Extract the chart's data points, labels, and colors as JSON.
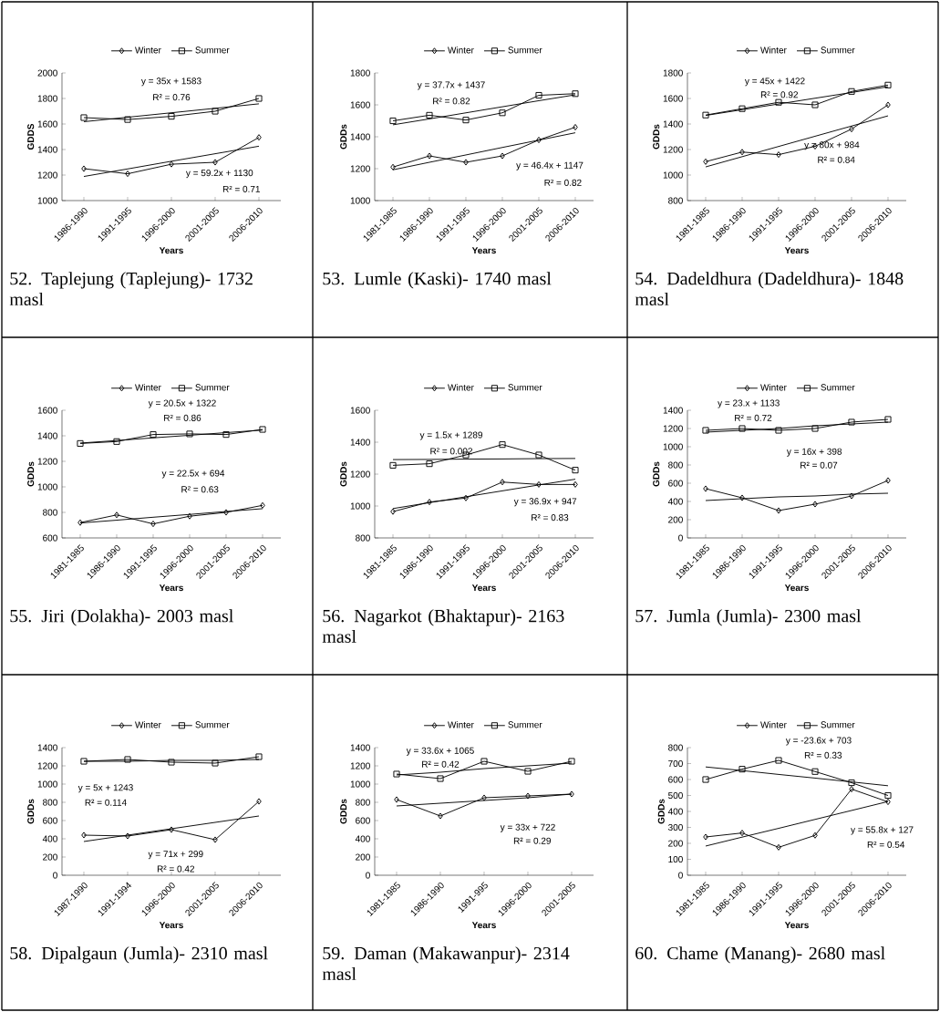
{
  "chart_data": [
    {
      "type": "line",
      "title": "52. Taplejung (Taplejung)- 1732 masl",
      "xlabel": "Years",
      "ylabel": "GDDS",
      "categories": [
        "1986-1990",
        "1991-1995",
        "1996-2000",
        "2001-2005",
        "2006-2010"
      ],
      "ylim": [
        1000,
        2000
      ],
      "yticks": [
        1000,
        1200,
        1400,
        1600,
        1800,
        2000
      ],
      "legend": "top",
      "series": [
        {
          "name": "Winter",
          "color": "#000000",
          "marker": "diamond",
          "values": [
            1250,
            1210,
            1285,
            1300,
            1495
          ]
        },
        {
          "name": "Summer",
          "color": "#000000",
          "marker": "square",
          "values": [
            1650,
            1635,
            1660,
            1700,
            1800
          ]
        },
        {
          "color": "#000000",
          "values": [
            1189,
            1248,
            1308,
            1367,
            1426
          ]
        },
        {
          "color": "#000000",
          "values": [
            1618,
            1653,
            1688,
            1723,
            1758
          ]
        }
      ],
      "annotations": [
        "y = 35x + 1583",
        "R² = 0.76",
        "y = 59.2x + 1130",
        "R² = 0.71"
      ]
    },
    {
      "type": "line",
      "title": "53. Lumle (Kaski)- 1740 masl",
      "xlabel": "Years",
      "ylabel": "GDDs",
      "categories": [
        "1981-1985",
        "1986-1990",
        "1991-1995",
        "1996-2000",
        "2001-2005",
        "2006-2010"
      ],
      "ylim": [
        1000,
        1800
      ],
      "yticks": [
        1000,
        1200,
        1400,
        1600,
        1800
      ],
      "legend": "top",
      "series": [
        {
          "name": "Winter",
          "color": "#000000",
          "marker": "diamond",
          "values": [
            1210,
            1280,
            1240,
            1280,
            1380,
            1460
          ]
        },
        {
          "name": "Summer",
          "color": "#000000",
          "marker": "square",
          "values": [
            1500,
            1535,
            1505,
            1550,
            1660,
            1670
          ]
        },
        {
          "color": "#000000",
          "values": [
            1193,
            1240,
            1286,
            1333,
            1379,
            1425
          ]
        },
        {
          "color": "#000000",
          "values": [
            1475,
            1512,
            1550,
            1588,
            1626,
            1663
          ]
        }
      ],
      "annotations": [
        "y = 37.7x + 1437",
        "R² = 0.82",
        "y = 46.4x + 1147",
        "R² = 0.82"
      ]
    },
    {
      "type": "line",
      "title": "54. Dadeldhura (Dadeldhura)- 1848 masl",
      "xlabel": "Years",
      "ylabel": "GDDs",
      "categories": [
        "1981-1985",
        "1986-1990",
        "1991-1995",
        "1996-2000",
        "2001-2005",
        "2006-2010"
      ],
      "ylim": [
        800,
        1800
      ],
      "yticks": [
        800,
        1000,
        1200,
        1400,
        1600,
        1800
      ],
      "legend": "top",
      "series": [
        {
          "name": "Winter",
          "color": "#000000",
          "marker": "diamond",
          "values": [
            1105,
            1180,
            1160,
            1225,
            1360,
            1550
          ]
        },
        {
          "name": "Summer",
          "color": "#000000",
          "marker": "square",
          "values": [
            1470,
            1520,
            1570,
            1550,
            1655,
            1705
          ]
        },
        {
          "color": "#000000",
          "values": [
            1064,
            1144,
            1224,
            1304,
            1384,
            1464
          ]
        },
        {
          "color": "#000000",
          "values": [
            1467,
            1512,
            1557,
            1602,
            1647,
            1692
          ]
        }
      ],
      "annotations": [
        "y = 45x + 1422",
        "R² = 0.92",
        "y = 80x + 984",
        "R² = 0.84"
      ]
    },
    {
      "type": "line",
      "title": "55. Jiri (Dolakha)- 2003 masl",
      "xlabel": "Years",
      "ylabel": "GDDs",
      "categories": [
        "1981-1985",
        "1986-1990",
        "1991-1995",
        "1996-2000",
        "2001-2005",
        "2006-2010"
      ],
      "ylim": [
        600,
        1600
      ],
      "yticks": [
        600,
        800,
        1000,
        1200,
        1400,
        1600
      ],
      "legend": "top",
      "series": [
        {
          "name": "Winter",
          "color": "#000000",
          "marker": "diamond",
          "values": [
            720,
            780,
            710,
            770,
            800,
            855
          ]
        },
        {
          "name": "Summer",
          "color": "#000000",
          "marker": "square",
          "values": [
            1340,
            1355,
            1410,
            1415,
            1410,
            1450
          ]
        },
        {
          "color": "#000000",
          "values": [
            717,
            739,
            762,
            784,
            807,
            829
          ]
        },
        {
          "color": "#000000",
          "values": [
            1343,
            1363,
            1384,
            1404,
            1425,
            1445
          ]
        }
      ],
      "annotations": [
        "y = 20.5x + 1322",
        "R² = 0.86",
        "y = 22.5x + 694",
        "R² = 0.63"
      ]
    },
    {
      "type": "line",
      "title": "56. Nagarkot (Bhaktapur)- 2163 masl",
      "xlabel": "Years",
      "ylabel": "GDDs",
      "categories": [
        "1981-1985",
        "1986-1990",
        "1991-1995",
        "1996-2000",
        "2001-2005",
        "2006-2010"
      ],
      "ylim": [
        800,
        1600
      ],
      "yticks": [
        800,
        1000,
        1200,
        1400,
        1600
      ],
      "legend": "top",
      "series": [
        {
          "name": "Winter",
          "color": "#000000",
          "marker": "diamond",
          "values": [
            965,
            1025,
            1050,
            1150,
            1135,
            1135
          ]
        },
        {
          "name": "Summer",
          "color": "#000000",
          "marker": "square",
          "values": [
            1255,
            1265,
            1320,
            1385,
            1320,
            1225
          ]
        },
        {
          "color": "#000000",
          "values": [
            984,
            1021,
            1058,
            1095,
            1132,
            1168
          ]
        },
        {
          "color": "#000000",
          "values": [
            1291,
            1292,
            1294,
            1295,
            1297,
            1298
          ]
        }
      ],
      "annotations": [
        "y = 1.5x + 1289",
        "R² = 0.002",
        "y = 36.9x + 947",
        "R² = 0.83"
      ]
    },
    {
      "type": "line",
      "title": "57. Jumla (Jumla)- 2300 masl",
      "xlabel": "Years",
      "ylabel": "GDDs",
      "categories": [
        "1981-1985",
        "1986-1990",
        "1991-1995",
        "1996-2000",
        "2001-2005",
        "2006-2010"
      ],
      "ylim": [
        0,
        1400
      ],
      "yticks": [
        0,
        200,
        400,
        600,
        800,
        1000,
        1200,
        1400
      ],
      "legend": "top",
      "series": [
        {
          "name": "Winter",
          "color": "#000000",
          "marker": "diamond",
          "values": [
            540,
            440,
            300,
            370,
            460,
            630
          ]
        },
        {
          "name": "Summer",
          "color": "#000000",
          "marker": "square",
          "values": [
            1180,
            1200,
            1180,
            1200,
            1270,
            1300
          ]
        },
        {
          "color": "#000000",
          "values": [
            410,
            430,
            450,
            460,
            480,
            490
          ]
        },
        {
          "color": "#000000",
          "values": [
            1160,
            1180,
            1200,
            1230,
            1250,
            1270
          ]
        }
      ],
      "annotations": [
        "y = 23.x + 1133",
        "R² = 0.72",
        "y = 16x + 398",
        "R² = 0.07"
      ]
    },
    {
      "type": "line",
      "title": "58. Dipalgaun (Jumla)- 2310 masl",
      "xlabel": "Years",
      "ylabel": "GDDs",
      "categories": [
        "1987-1990",
        "1991-1994",
        "1996-2000",
        "2001-2005",
        "2006-2010"
      ],
      "ylim": [
        0,
        1400
      ],
      "yticks": [
        0,
        200,
        400,
        600,
        800,
        1000,
        1200,
        1400
      ],
      "legend": "top",
      "series": [
        {
          "name": "Winter",
          "color": "#000000",
          "marker": "diamond",
          "values": [
            440,
            430,
            500,
            390,
            810
          ]
        },
        {
          "name": "Summer",
          "color": "#000000",
          "marker": "square",
          "values": [
            1250,
            1270,
            1240,
            1230,
            1300
          ]
        },
        {
          "color": "#000000",
          "values": [
            370,
            440,
            510,
            580,
            650
          ]
        },
        {
          "color": "#000000",
          "values": [
            1250,
            1250,
            1260,
            1260,
            1270
          ]
        }
      ],
      "annotations": [
        "y = 5x + 1243",
        "R² = 0.114",
        "y = 71x + 299",
        "R² = 0.42"
      ]
    },
    {
      "type": "line",
      "title": "59. Daman (Makawanpur)- 2314 masl",
      "xlabel": "Years",
      "ylabel": "GDDs",
      "categories": [
        "1981-1985",
        "1986-1990",
        "1991-995",
        "1996-2000",
        "2001-2005"
      ],
      "ylim": [
        0,
        1400
      ],
      "yticks": [
        0,
        200,
        400,
        600,
        800,
        1000,
        1200,
        1400
      ],
      "legend": "top",
      "series": [
        {
          "name": "Winter",
          "color": "#000000",
          "marker": "diamond",
          "values": [
            830,
            650,
            850,
            870,
            890
          ]
        },
        {
          "name": "Summer",
          "color": "#000000",
          "marker": "square",
          "values": [
            1110,
            1060,
            1250,
            1140,
            1250
          ]
        },
        {
          "color": "#000000",
          "values": [
            760,
            790,
            820,
            850,
            890
          ]
        },
        {
          "color": "#000000",
          "values": [
            1100,
            1130,
            1170,
            1200,
            1230
          ]
        }
      ],
      "annotations": [
        "y = 33.6x + 1065",
        "R² = 0.42",
        "y = 33x + 722",
        "R² = 0.29"
      ]
    },
    {
      "type": "line",
      "title": "60. Chame (Manang)- 2680 masl",
      "xlabel": "Years",
      "ylabel": "GDDs",
      "categories": [
        "1981-1985",
        "1986-1990",
        "1991-1995",
        "1996-2000",
        "2001-2005",
        "2006-2010"
      ],
      "ylim": [
        0,
        800
      ],
      "yticks": [
        0,
        100,
        200,
        300,
        400,
        500,
        600,
        700,
        800
      ],
      "legend": "top",
      "series": [
        {
          "name": "Winter",
          "color": "#000000",
          "marker": "diamond",
          "values": [
            240,
            265,
            175,
            250,
            540,
            460
          ]
        },
        {
          "name": "Summer",
          "color": "#000000",
          "marker": "square",
          "values": [
            600,
            665,
            720,
            650,
            580,
            500
          ]
        },
        {
          "color": "#000000",
          "values": [
            183,
            239,
            294,
            350,
            406,
            462
          ]
        },
        {
          "color": "#000000",
          "values": [
            679,
            656,
            632,
            609,
            585,
            561
          ]
        }
      ],
      "annotations": [
        "y = -23.6x + 703",
        "R² = 0.33",
        "y = 55.8x + 127",
        "R² = 0.54"
      ]
    }
  ]
}
